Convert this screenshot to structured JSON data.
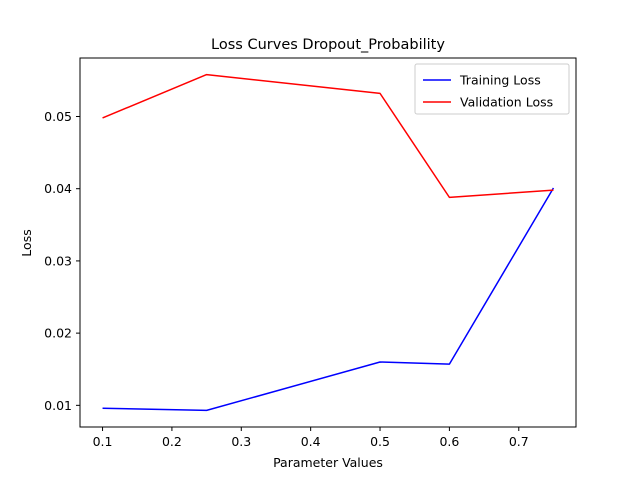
{
  "chart_data": {
    "type": "line",
    "title": "Loss Curves Dropout_Probability",
    "xlabel": "Parameter Values",
    "ylabel": "Loss",
    "x": [
      0.1,
      0.25,
      0.5,
      0.6,
      0.75
    ],
    "series": [
      {
        "name": "Training Loss",
        "color": "#0000ff",
        "values": [
          0.0096,
          0.0093,
          0.016,
          0.0157,
          0.0401
        ]
      },
      {
        "name": "Validation Loss",
        "color": "#ff0000",
        "values": [
          0.0498,
          0.0558,
          0.0532,
          0.0388,
          0.0398
        ]
      }
    ],
    "xlim": [
      0.0675,
      0.7825
    ],
    "ylim": [
      0.007,
      0.0581
    ],
    "xticks": [
      0.1,
      0.2,
      0.3,
      0.4,
      0.5,
      0.6,
      0.7
    ],
    "yticks": [
      0.01,
      0.02,
      0.03,
      0.04,
      0.05
    ],
    "xtick_labels": [
      "0.1",
      "0.2",
      "0.3",
      "0.4",
      "0.5",
      "0.6",
      "0.7"
    ],
    "ytick_labels": [
      "0.01",
      "0.02",
      "0.03",
      "0.04",
      "0.05"
    ],
    "grid": false,
    "legend_position": "upper right"
  }
}
